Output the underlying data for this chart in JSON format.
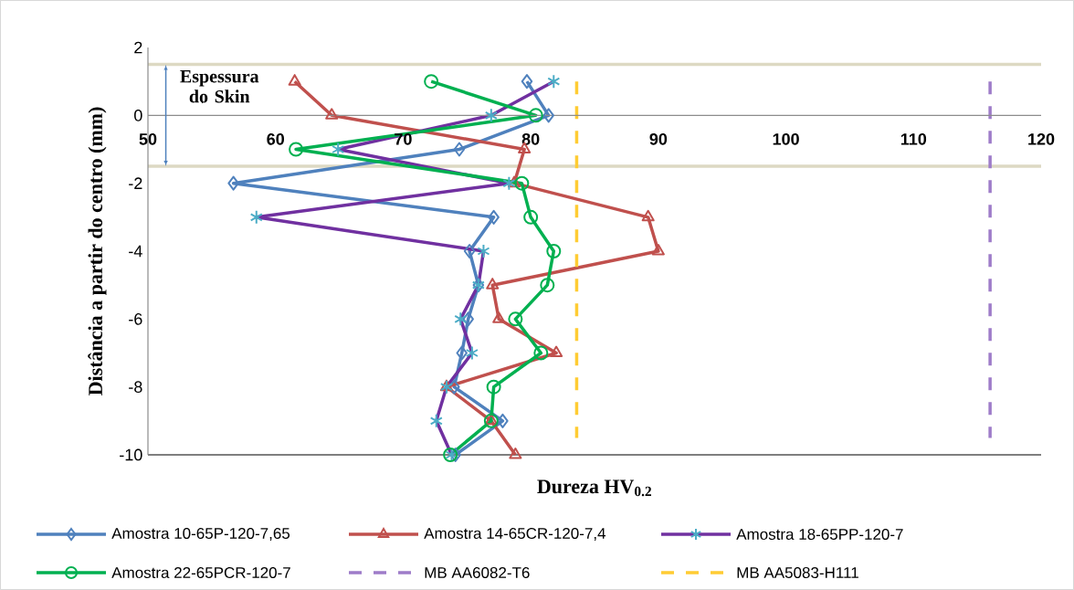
{
  "chart_data": {
    "type": "line",
    "xlabel": "Dureza HV$_{0.2}$",
    "ylabel": "Distância a partir do centro (mm)",
    "xlim": [
      50,
      120
    ],
    "xticks": [
      50,
      60,
      70,
      80,
      90,
      100,
      110,
      120
    ],
    "ylim": [
      -10,
      2
    ],
    "yticks": [
      -10,
      -8,
      -6,
      -4,
      -2,
      0,
      2
    ],
    "legend": "bottom",
    "ref_lines": [
      {
        "axis": "y",
        "value": 1.5,
        "color": "#ddd9c3",
        "label": "Espessura do Skin"
      },
      {
        "axis": "y",
        "value": -1.5,
        "color": "#ddd9c3"
      }
    ],
    "series": [
      {
        "name": "Amostra 10-65P-120-7,65",
        "color": "#4f81bd",
        "marker": "diamond",
        "line_style": "solid",
        "x": [
          79.7,
          81.4,
          74.4,
          56.7,
          77.1,
          75.2,
          75.9,
          75.1,
          74.6,
          74.0,
          77.8,
          74.1
        ],
        "values": [
          1,
          0,
          -1,
          -2,
          -3,
          -4,
          -5,
          -6,
          -7,
          -8,
          -9,
          -10
        ]
      },
      {
        "name": "Amostra 14-65CR-120-7,4",
        "color": "#c0504d",
        "marker": "triangle",
        "line_style": "solid",
        "x": [
          61.5,
          64.4,
          79.5,
          78.7,
          89.2,
          90.0,
          77.0,
          77.5,
          82.0,
          73.4,
          76.9,
          78.8
        ],
        "values": [
          1,
          0,
          -1,
          -2,
          -3,
          -4,
          -5,
          -6,
          -7,
          -8,
          -9,
          -10
        ]
      },
      {
        "name": "Amostra 18-65PP-120-7",
        "color": "#7030a0",
        "marker": "cross",
        "line_style": "solid",
        "x": [
          81.8,
          76.9,
          64.9,
          78.3,
          58.5,
          76.3,
          75.9,
          74.5,
          75.4,
          73.4,
          72.6,
          73.8
        ],
        "values": [
          1,
          0,
          -1,
          -2,
          -3,
          -4,
          -5,
          -6,
          -7,
          -8,
          -9,
          -10
        ]
      },
      {
        "name": "Amostra 22-65PCR-120-7",
        "color": "#00b050",
        "marker": "circle",
        "line_style": "solid",
        "x": [
          72.2,
          80.4,
          61.6,
          79.3,
          80.0,
          81.8,
          81.3,
          78.8,
          80.8,
          77.1,
          76.9,
          73.7
        ],
        "values": [
          1,
          0,
          -1,
          -2,
          -3,
          -4,
          -5,
          -6,
          -7,
          -8,
          -9,
          -10
        ]
      },
      {
        "name": "MB AA6082-T6",
        "color": "#9e7cc9",
        "marker": "none",
        "line_style": "dashed",
        "x": [
          116.0,
          116.0
        ],
        "values": [
          1,
          -9.5
        ]
      },
      {
        "name": "MB AA5083-H111",
        "color": "#ffcc33",
        "marker": "none",
        "line_style": "dashed",
        "x": [
          83.6,
          83.6
        ],
        "values": [
          1,
          -9.5
        ]
      }
    ]
  }
}
